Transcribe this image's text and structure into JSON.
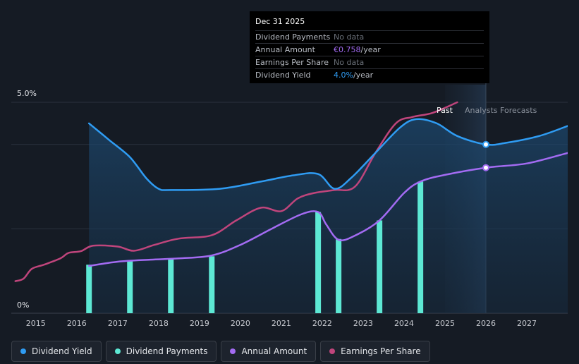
{
  "chart_data": {
    "type": "line",
    "y_axis": {
      "ylim": [
        0,
        5.0
      ],
      "tick_labels": [
        "5.0%",
        "0%"
      ]
    },
    "x_axis": {
      "xlim": [
        2014.4,
        2028.0
      ],
      "tick_values": [
        2015,
        2016,
        2017,
        2018,
        2019,
        2020,
        2021,
        2022,
        2023,
        2024,
        2025,
        2026,
        2027
      ],
      "tick_labels": [
        "2015",
        "2016",
        "2017",
        "2018",
        "2019",
        "2020",
        "2021",
        "2022",
        "2023",
        "2024",
        "2025",
        "2026",
        "2027"
      ]
    },
    "past_label": "Past",
    "forecast_label": "Analysts Forecasts",
    "forecast_start": 2025.0,
    "tooltip_date_x": 2026.0,
    "series": [
      {
        "name": "Dividend Yield",
        "unit": "%",
        "color": "#2f9cf3",
        "x": [
          2016.3,
          2016.8,
          2017.3,
          2017.7,
          2018.0,
          2018.3,
          2019.5,
          2020.5,
          2021.3,
          2021.9,
          2022.3,
          2022.7,
          2023.3,
          2023.9,
          2024.3,
          2024.8,
          2025.3,
          2026.0,
          2026.5,
          2027.3,
          2028.0
        ],
        "values": [
          4.5,
          4.1,
          3.7,
          3.2,
          2.95,
          2.92,
          2.95,
          3.12,
          3.27,
          3.3,
          2.95,
          3.2,
          3.8,
          4.4,
          4.6,
          4.5,
          4.2,
          4.0,
          4.04,
          4.2,
          4.44
        ]
      },
      {
        "name": "Dividend Payments",
        "unit": "bar",
        "color": "#5de8d4",
        "x": [
          2016.3,
          2017.3,
          2018.3,
          2019.3,
          2021.9,
          2022.4,
          2023.4,
          2024.4
        ],
        "values": [
          1.15,
          1.25,
          1.28,
          1.35,
          2.4,
          1.76,
          2.2,
          3.12
        ]
      },
      {
        "name": "Annual Amount",
        "unit": "EUR",
        "color": "#a36bf2",
        "x": [
          2016.3,
          2017.0,
          2017.8,
          2018.5,
          2019.3,
          2020.0,
          2020.8,
          2021.5,
          2021.9,
          2022.1,
          2022.4,
          2022.8,
          2023.4,
          2024.0,
          2024.4,
          2025.0,
          2026.0,
          2027.0,
          2028.0
        ],
        "values": [
          1.12,
          1.22,
          1.27,
          1.3,
          1.37,
          1.62,
          2.02,
          2.35,
          2.4,
          2.1,
          1.74,
          1.84,
          2.2,
          2.85,
          3.12,
          3.28,
          3.45,
          3.55,
          3.8
        ]
      },
      {
        "name": "Earnings Per Share",
        "unit": "EUR",
        "color": "#c0457c",
        "x": [
          2014.5,
          2014.7,
          2014.9,
          2015.2,
          2015.6,
          2015.8,
          2016.1,
          2016.4,
          2017.0,
          2017.4,
          2017.9,
          2018.5,
          2019.3,
          2019.9,
          2020.5,
          2021.0,
          2021.4,
          2021.8,
          2022.3,
          2022.8,
          2023.3,
          2023.8,
          2024.2,
          2024.7,
          2025.3
        ],
        "values": [
          0.76,
          0.82,
          1.05,
          1.15,
          1.3,
          1.43,
          1.47,
          1.6,
          1.58,
          1.48,
          1.62,
          1.77,
          1.85,
          2.2,
          2.5,
          2.42,
          2.72,
          2.85,
          2.92,
          3.0,
          3.8,
          4.5,
          4.65,
          4.75,
          5.0
        ]
      }
    ]
  },
  "tooltip": {
    "date": "Dec 31 2025",
    "rows": [
      {
        "label": "Dividend Payments",
        "value": "No data",
        "highlight": "",
        "unit": ""
      },
      {
        "label": "Annual Amount",
        "value": "",
        "highlight": "€0.758",
        "unit": "/year"
      },
      {
        "label": "Earnings Per Share",
        "value": "No data",
        "highlight": "",
        "unit": ""
      },
      {
        "label": "Dividend Yield",
        "value": "",
        "highlight": "4.0%",
        "unit": "/year"
      }
    ]
  },
  "legend": [
    {
      "label": "Dividend Yield",
      "color": "#2f9cf3"
    },
    {
      "label": "Dividend Payments",
      "color": "#5de8d4"
    },
    {
      "label": "Annual Amount",
      "color": "#a36bf2"
    },
    {
      "label": "Earnings Per Share",
      "color": "#c0457c"
    }
  ]
}
